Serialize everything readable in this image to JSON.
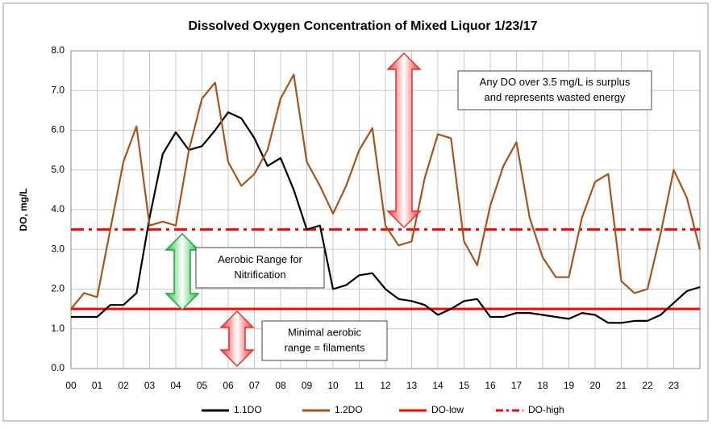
{
  "chart_data": {
    "type": "line",
    "title": "Dissolved Oxygen Concentration of Mixed Liquor  1/23/17",
    "y_label": "DO, mg/L",
    "x": [
      0,
      0.5,
      1,
      1.5,
      2,
      2.5,
      3,
      3.5,
      4,
      4.5,
      5,
      5.5,
      6,
      6.5,
      7,
      7.5,
      8,
      8.5,
      9,
      9.5,
      10,
      10.5,
      11,
      11.5,
      12,
      12.5,
      13,
      13.5,
      14,
      14.5,
      15,
      15.5,
      16,
      16.5,
      17,
      17.5,
      18,
      18.5,
      19,
      19.5,
      20,
      20.5,
      21,
      21.5,
      22,
      22.5,
      23,
      23.5,
      24
    ],
    "series": [
      {
        "name": "1.1DO",
        "color": "#000000",
        "values": [
          1.3,
          1.3,
          1.3,
          1.6,
          1.6,
          1.9,
          3.8,
          5.4,
          5.95,
          5.5,
          5.6,
          6.0,
          6.45,
          6.3,
          5.8,
          5.1,
          5.3,
          4.5,
          3.5,
          3.6,
          2.0,
          2.1,
          2.35,
          2.4,
          2.0,
          1.75,
          1.7,
          1.6,
          1.35,
          1.5,
          1.7,
          1.75,
          1.3,
          1.3,
          1.4,
          1.4,
          1.35,
          1.3,
          1.25,
          1.4,
          1.35,
          1.15,
          1.15,
          1.2,
          1.2,
          1.35,
          1.65,
          1.95,
          2.05
        ]
      },
      {
        "name": "1.2DO",
        "color": "#a0561e",
        "values": [
          1.5,
          1.9,
          1.8,
          3.5,
          5.2,
          6.1,
          3.6,
          3.7,
          3.6,
          5.5,
          6.8,
          7.2,
          5.2,
          4.6,
          4.9,
          5.5,
          6.8,
          7.4,
          5.2,
          4.6,
          3.9,
          4.6,
          5.5,
          6.05,
          3.6,
          3.1,
          3.2,
          4.8,
          5.9,
          5.8,
          3.2,
          2.6,
          4.1,
          5.1,
          5.7,
          3.8,
          2.8,
          2.3,
          2.3,
          3.8,
          4.7,
          4.9,
          2.2,
          1.9,
          2.0,
          3.4,
          5.0,
          4.3,
          3.0
        ]
      }
    ],
    "reference_lines": [
      {
        "name": "DO-low",
        "value": 1.5,
        "color": "#ff0000",
        "style": "solid"
      },
      {
        "name": "DO-high",
        "value": 3.5,
        "color": "#ff0000",
        "style": "dash-dot"
      }
    ],
    "xlim": [
      0,
      24
    ],
    "xticks": [
      {
        "value": 0,
        "label": "00"
      },
      {
        "value": 1,
        "label": "01"
      },
      {
        "value": 2,
        "label": "02"
      },
      {
        "value": 3,
        "label": "03"
      },
      {
        "value": 4,
        "label": "04"
      },
      {
        "value": 5,
        "label": "05"
      },
      {
        "value": 6,
        "label": "06"
      },
      {
        "value": 7,
        "label": "07"
      },
      {
        "value": 8,
        "label": "08"
      },
      {
        "value": 9,
        "label": "09"
      },
      {
        "value": 10,
        "label": "10"
      },
      {
        "value": 11,
        "label": "11"
      },
      {
        "value": 12,
        "label": "12"
      },
      {
        "value": 13,
        "label": "13"
      },
      {
        "value": 14,
        "label": "14"
      },
      {
        "value": 15,
        "label": "15"
      },
      {
        "value": 16,
        "label": "16"
      },
      {
        "value": 17,
        "label": "17"
      },
      {
        "value": 18,
        "label": "18"
      },
      {
        "value": 19,
        "label": "19"
      },
      {
        "value": 20,
        "label": "20"
      },
      {
        "value": 21,
        "label": "21"
      },
      {
        "value": 22,
        "label": "22"
      },
      {
        "value": 23,
        "label": "23"
      }
    ],
    "ylim": [
      0,
      8
    ],
    "yticks": [
      {
        "value": 0,
        "label": "0.0"
      },
      {
        "value": 1,
        "label": "1.0"
      },
      {
        "value": 2,
        "label": "2.0"
      },
      {
        "value": 3,
        "label": "3.0"
      },
      {
        "value": 4,
        "label": "4.0"
      },
      {
        "value": 5,
        "label": "5.0"
      },
      {
        "value": 6,
        "label": "6.0"
      },
      {
        "value": 7,
        "label": "7.0"
      },
      {
        "value": 8,
        "label": "8.0"
      }
    ],
    "grid": true,
    "legend": "bottom",
    "annotations": [
      {
        "lines": [
          "Any DO over 3.5 mg/L is surplus",
          "and represents wasted energy"
        ]
      },
      {
        "lines": [
          "Aerobic Range for",
          "Nitrification"
        ]
      },
      {
        "lines": [
          "Minimal aerobic",
          "range = filaments"
        ]
      }
    ]
  }
}
